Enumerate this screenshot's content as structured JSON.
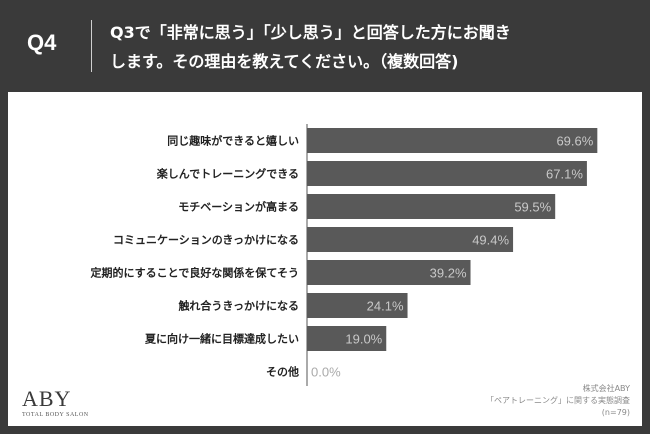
{
  "header": {
    "question_number": "Q4",
    "question_line1": "Q3で「非常に思う」「少し思う」と回答した方にお聞き",
    "question_line2": "します。その理由を教えてください。（複数回答)"
  },
  "chart_data": {
    "type": "bar",
    "orientation": "horizontal",
    "categories": [
      "同じ趣味ができると嬉しい",
      "楽しんでトレーニングできる",
      "モチベーションが高まる",
      "コミュニケーションのきっかけになる",
      "定期的にすることで良好な関係を保てそう",
      "触れ合うきっかけになる",
      "夏に向け一緒に目標達成したい",
      "その他"
    ],
    "values": [
      69.6,
      67.1,
      59.5,
      49.4,
      39.2,
      24.1,
      19.0,
      0.0
    ],
    "value_labels": [
      "69.6%",
      "67.1%",
      "59.5%",
      "49.4%",
      "39.2%",
      "24.1%",
      "19.0%",
      "0.0%"
    ],
    "xlim": [
      0,
      70
    ],
    "bar_color": "#595959",
    "grid": false
  },
  "logo": {
    "main": "ABY",
    "sub": "TOTAL BODY SALON"
  },
  "source": {
    "line1": "株式会社ABY",
    "line2": "「ペアトレーニング」に関する実態調査",
    "line3": "(n=79)"
  }
}
